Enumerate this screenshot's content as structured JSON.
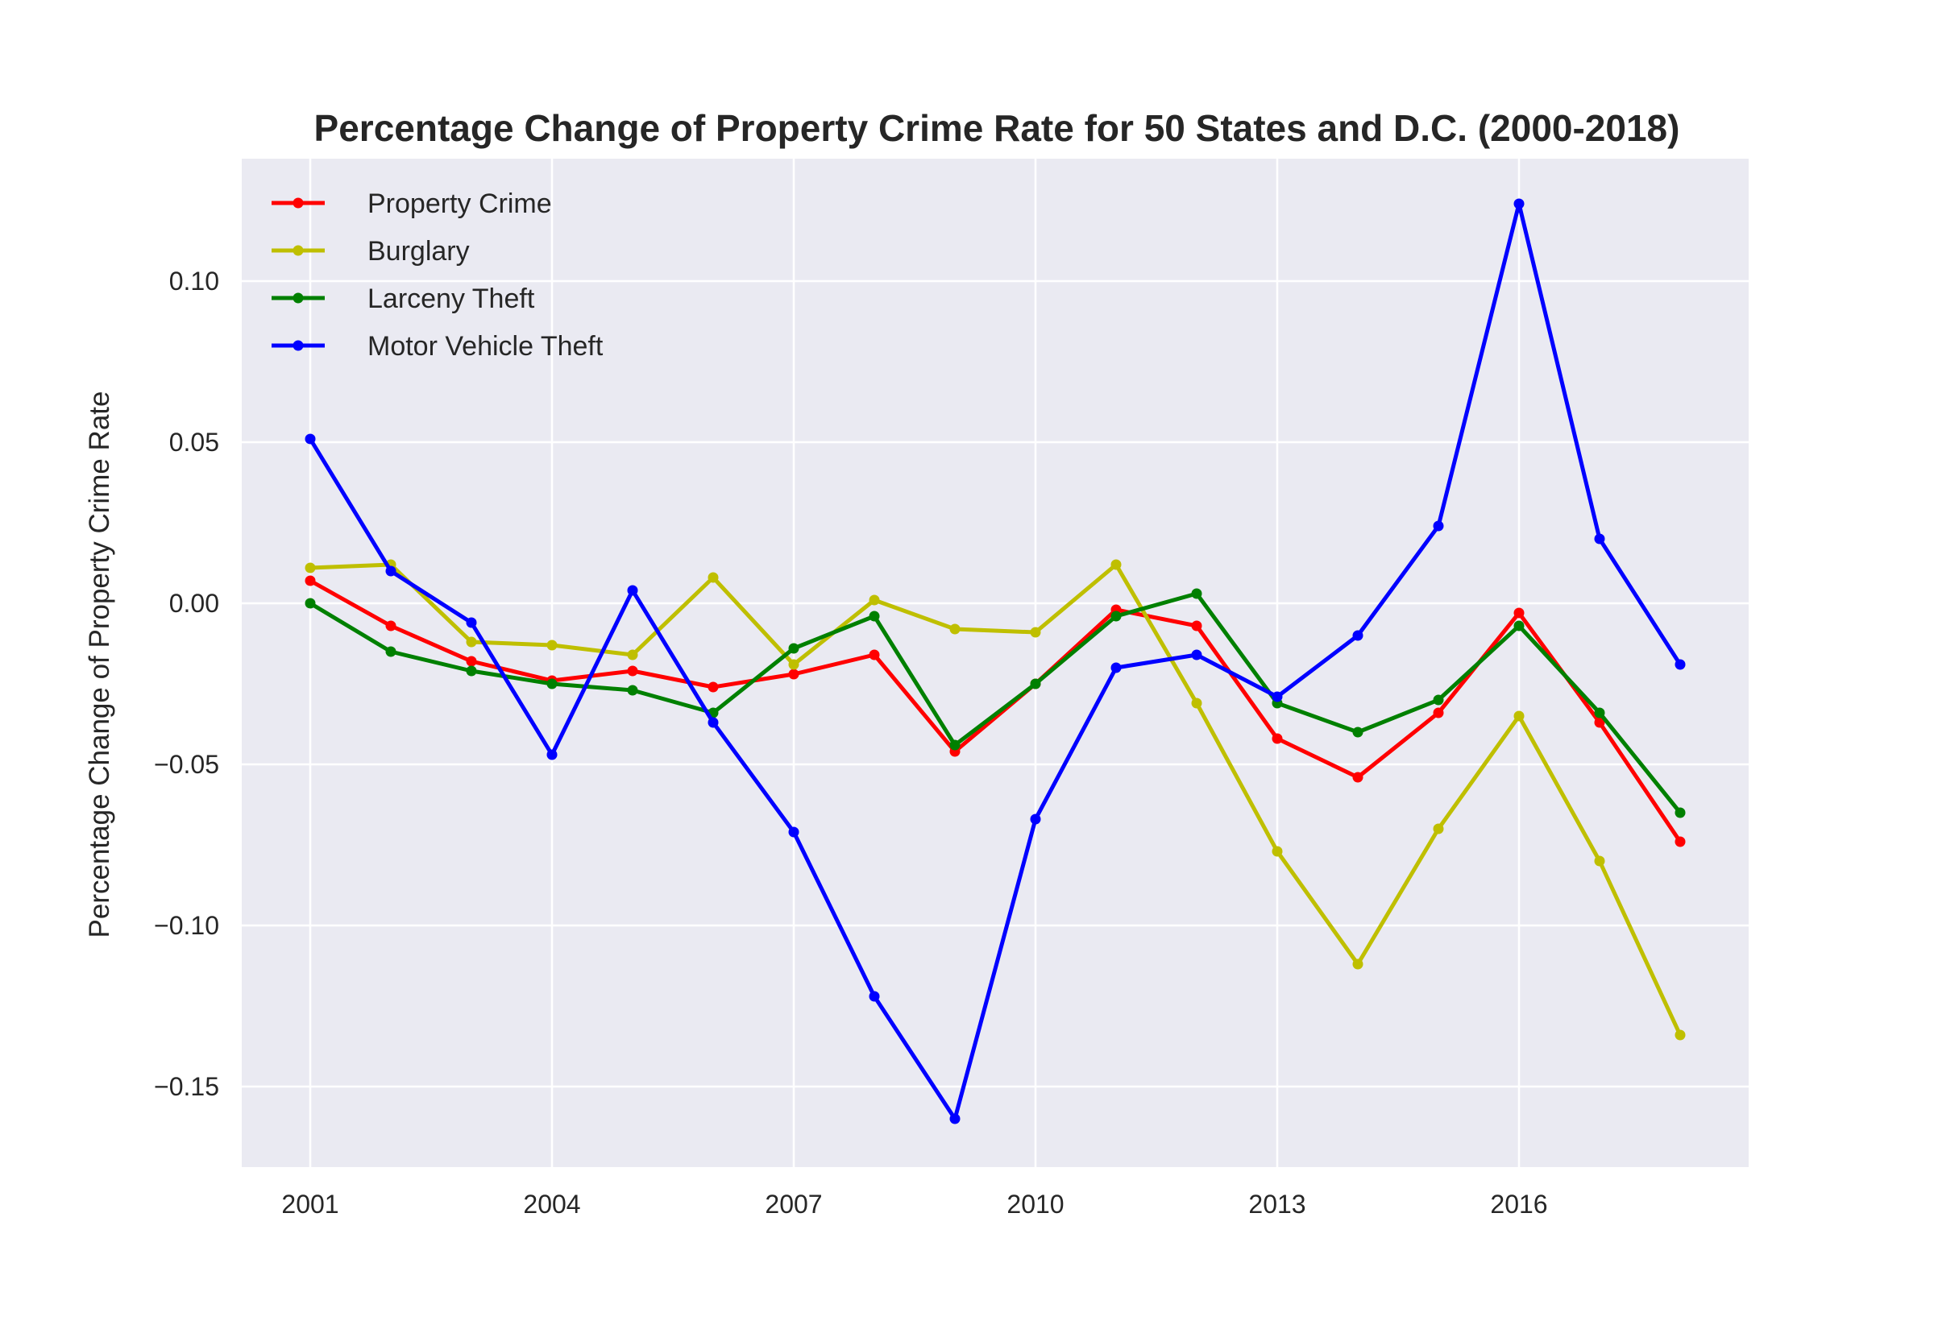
{
  "chart_data": {
    "type": "line",
    "title": "Percentage Change of Property Crime Rate for 50 States and D.C. (2000-2018)",
    "xlabel": "",
    "ylabel": "Percentage Change of Property Crime Rate",
    "x": [
      2001,
      2002,
      2003,
      2004,
      2005,
      2006,
      2007,
      2008,
      2009,
      2010,
      2011,
      2012,
      2013,
      2014,
      2015,
      2016,
      2017,
      2018
    ],
    "xticks": [
      "2001",
      "2004",
      "2007",
      "2010",
      "2013",
      "2016"
    ],
    "yticks": [
      "0.10",
      "0.05",
      "0.00",
      "−0.05",
      "−0.10",
      "−0.15"
    ],
    "ylim": [
      -0.175,
      0.138
    ],
    "xlim": [
      2000.15,
      2018.85
    ],
    "grid": true,
    "legend_position": "upper left",
    "series": [
      {
        "name": "Property Crime",
        "color": "#ff0000",
        "values": [
          0.007,
          -0.007,
          -0.018,
          -0.024,
          -0.021,
          -0.026,
          -0.022,
          -0.016,
          -0.046,
          -0.025,
          -0.002,
          -0.007,
          -0.042,
          -0.054,
          -0.034,
          -0.003,
          -0.037,
          -0.074
        ]
      },
      {
        "name": "Burglary",
        "color": "#bfbf00",
        "values": [
          0.011,
          0.012,
          -0.012,
          -0.013,
          -0.016,
          0.008,
          -0.019,
          0.001,
          -0.008,
          -0.009,
          0.012,
          -0.031,
          -0.077,
          -0.112,
          -0.07,
          -0.035,
          -0.08,
          -0.134
        ]
      },
      {
        "name": "Larceny Theft",
        "color": "#008000",
        "values": [
          0.0,
          -0.015,
          -0.021,
          -0.025,
          -0.027,
          -0.034,
          -0.014,
          -0.004,
          -0.044,
          -0.025,
          -0.004,
          0.003,
          -0.031,
          -0.04,
          -0.03,
          -0.007,
          -0.034,
          -0.065
        ]
      },
      {
        "name": "Motor Vehicle Theft",
        "color": "#0000ff",
        "values": [
          0.051,
          0.01,
          -0.006,
          -0.047,
          0.004,
          -0.037,
          -0.071,
          -0.122,
          -0.16,
          -0.067,
          -0.02,
          -0.016,
          -0.029,
          -0.01,
          0.024,
          0.124,
          0.02,
          -0.019
        ]
      }
    ]
  }
}
